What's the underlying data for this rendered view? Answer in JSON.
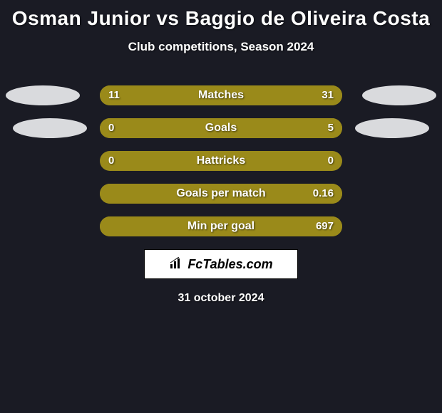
{
  "background_color": "#1a1b24",
  "text_color": "#ffffff",
  "title": "Osman Junior vs Baggio de Oliveira Costa",
  "subtitle": "Club competitions, Season 2024",
  "avatar_color": "#d9dadd",
  "stats": [
    {
      "label": "Matches",
      "left_val": "11",
      "right_val": "31",
      "left_pct": 26.19,
      "right_pct": 73.81,
      "left_color": "#9a8a1a",
      "right_color": "#9a8a1a"
    },
    {
      "label": "Goals",
      "left_val": "0",
      "right_val": "5",
      "left_pct": 0.0,
      "right_pct": 100.0,
      "left_color": "#1a1b24",
      "right_color": "#9a8a1a"
    },
    {
      "label": "Hattricks",
      "left_val": "0",
      "right_val": "0",
      "left_pct": 0.0,
      "right_pct": 0.0,
      "left_color": "#1a1b24",
      "right_color": "#1a1b24"
    },
    {
      "label": "Goals per match",
      "left_val": "",
      "right_val": "0.16",
      "left_pct": 0.0,
      "right_pct": 100.0,
      "left_color": "#1a1b24",
      "right_color": "#9a8a1a"
    },
    {
      "label": "Min per goal",
      "left_val": "",
      "right_val": "697",
      "left_pct": 0.0,
      "right_pct": 100.0,
      "left_color": "#1a1b24",
      "right_color": "#9a8a1a"
    }
  ],
  "bar_track_color": "#9a8a1a",
  "footer_box_bg": "#ffffff",
  "footer_brand": "FcTables.com",
  "footer_brand_color": "#000000",
  "footer_icon": "bar-chart-icon",
  "date_text": "31 october 2024"
}
